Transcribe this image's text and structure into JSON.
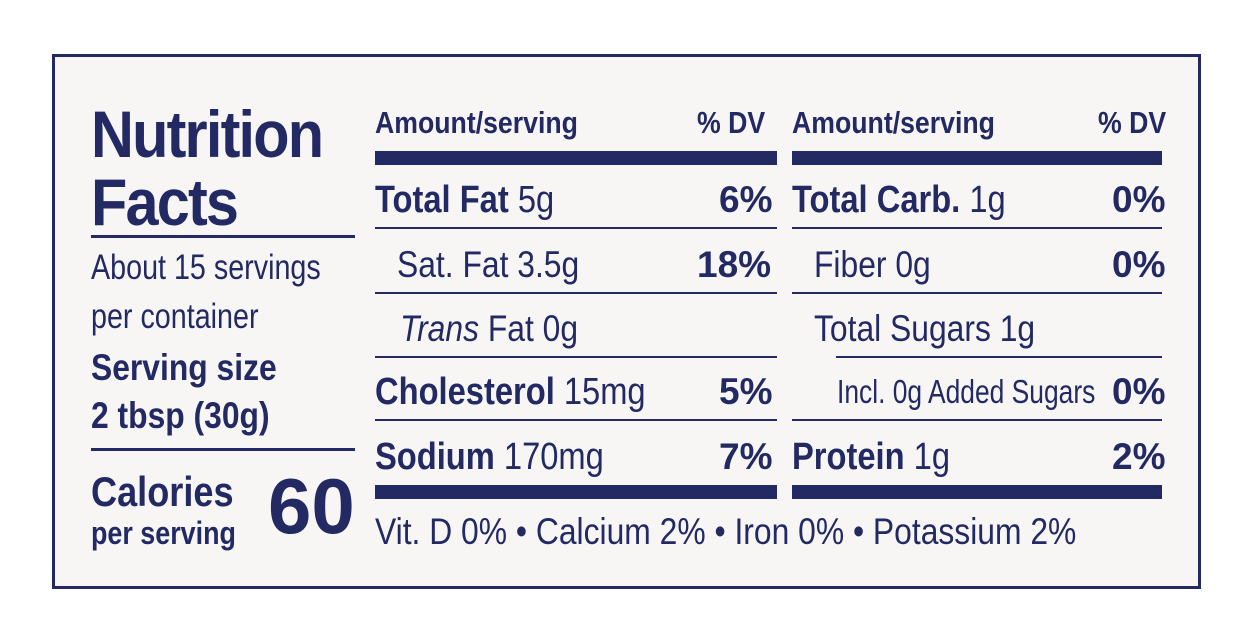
{
  "title_line1": "Nutrition",
  "title_line2": "Facts",
  "servings_line1": "About 15 servings",
  "servings_line2": "per container",
  "serving_size_label": "Serving size",
  "serving_size_value": "2 tbsp (30g)",
  "calories_label": "Calories",
  "calories_sub": "per serving",
  "calories_value": "60",
  "header": {
    "amount": "Amount/serving",
    "dv": "% DV"
  },
  "left": {
    "total_fat": {
      "name": "Total Fat",
      "amount": "5g",
      "dv": "6%"
    },
    "sat_fat": {
      "name": "Sat. Fat",
      "amount": "3.5g",
      "dv": "18%"
    },
    "trans_fat": {
      "name": "Trans",
      "rest": "Fat 0g"
    },
    "cholesterol": {
      "name": "Cholesterol",
      "amount": "15mg",
      "dv": "5%"
    },
    "sodium": {
      "name": "Sodium",
      "amount": "170mg",
      "dv": "7%"
    }
  },
  "right": {
    "total_carb": {
      "name": "Total Carb.",
      "amount": "1g",
      "dv": "0%"
    },
    "fiber": {
      "name": "Fiber",
      "amount": "0g",
      "dv": "0%"
    },
    "total_sugars": {
      "name": "Total Sugars",
      "amount": "1g"
    },
    "added_sugars": {
      "name": "Incl. 0g Added Sugars",
      "dv": "0%"
    },
    "protein": {
      "name": "Protein",
      "amount": "1g",
      "dv": "2%"
    }
  },
  "footer": "Vit. D 0% • Calcium 2% • Iron 0% • Potassium 2%",
  "colors": {
    "ink": "#232a63",
    "background": "#f7f6f5"
  }
}
